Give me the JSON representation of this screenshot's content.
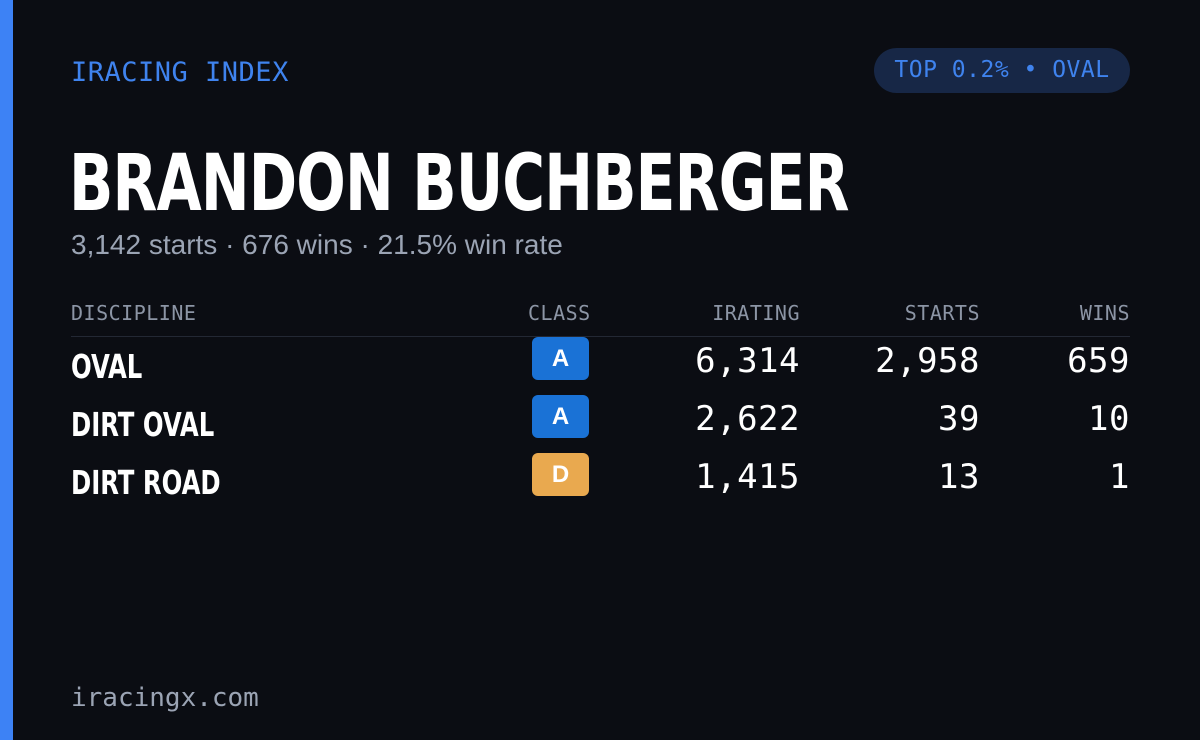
{
  "brand": "IRACING INDEX",
  "rank_badge": "TOP 0.2% • OVAL",
  "driver": {
    "name": "BRANDON BUCHBERGER",
    "summary": "3,142 starts · 676 wins · 21.5% win rate"
  },
  "table": {
    "headers": {
      "discipline": "DISCIPLINE",
      "class": "CLASS",
      "irating": "IRATING",
      "starts": "STARTS",
      "wins": "WINS"
    },
    "rows": [
      {
        "discipline": "OVAL",
        "class": "A",
        "class_color": "#1a72d6",
        "class_text_color": "#ffffff",
        "irating": "6,314",
        "starts": "2,958",
        "wins": "659"
      },
      {
        "discipline": "DIRT OVAL",
        "class": "A",
        "class_color": "#1a72d6",
        "class_text_color": "#ffffff",
        "irating": "2,622",
        "starts": "39",
        "wins": "10"
      },
      {
        "discipline": "DIRT ROAD",
        "class": "D",
        "class_color": "#e9a94f",
        "class_text_color": "#ffffff",
        "irating": "1,415",
        "starts": "13",
        "wins": "1"
      }
    ]
  },
  "footer": {
    "site": "iracingx.com"
  },
  "colors": {
    "background": "#0b0d13",
    "accent": "#3d82f5",
    "badge_bg": "#172746",
    "muted_text": "#9ba4b4"
  }
}
